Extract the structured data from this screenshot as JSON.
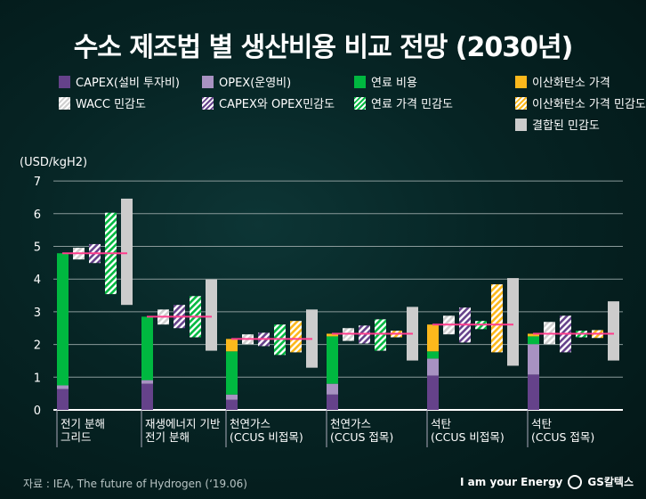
{
  "colors": {
    "capex": "#65428a",
    "opex": "#a892c2",
    "fuel": "#00b840",
    "carbon": "#fcb81c",
    "wacc": "#d9d9d9",
    "combined": "#cccccc",
    "mean": "#ff3d8c"
  },
  "chart_data": {
    "type": "bar",
    "title": "수소 제조법 별 생산비용 비교 전망 (2030년)",
    "ylabel": "(USD/kgH2)",
    "ylim": [
      0,
      7
    ],
    "yticks": [
      0,
      1,
      2,
      3,
      4,
      5,
      6,
      7
    ],
    "grid": true,
    "legend_placement": "top",
    "legend": [
      {
        "key": "capex",
        "label": "CAPEX(설비 투자비)",
        "hatch": false
      },
      {
        "key": "opex",
        "label": "OPEX(운영비)",
        "hatch": false
      },
      {
        "key": "fuel",
        "label": "연료 비용",
        "hatch": false
      },
      {
        "key": "carbon",
        "label": "이산화탄소 가격",
        "hatch": false
      },
      {
        "key": "wacc",
        "label": "WACC 민감도",
        "hatch": true
      },
      {
        "key": "capex",
        "label": "CAPEX와 OPEX민감도",
        "hatch": true
      },
      {
        "key": "fuel",
        "label": "연료 가격 민감도",
        "hatch": true
      },
      {
        "key": "carbon",
        "label": "이산화탄소 가격 민감도",
        "hatch": true
      },
      {
        "key": "combined",
        "label": "결합된 민감도",
        "hatch": false
      }
    ],
    "categories": [
      "전기 분해\n그리드",
      "재생에너지 기반\n전기 분해",
      "천연가스\n(CCUS 비접목)",
      "천연가스\n(CCUS 접목)",
      "석탄\n(CCUS 비접목)",
      "석탄\n(CCUS 접목)"
    ],
    "groups": [
      {
        "capex": 0.64,
        "opex": 0.11,
        "fuel": 4.04,
        "carbon": 0,
        "total": 4.79,
        "ranges": {
          "wacc": [
            4.6,
            4.96
          ],
          "capex_opex": [
            4.49,
            5.07
          ],
          "fuel": [
            3.54,
            6.03
          ],
          "combined": [
            3.21,
            6.46
          ]
        }
      },
      {
        "capex": 0.8,
        "opex": 0.11,
        "fuel": 1.94,
        "carbon": 0,
        "total": 2.85,
        "ranges": {
          "wacc": [
            2.61,
            3.07
          ],
          "capex_opex": [
            2.5,
            3.21
          ],
          "fuel": [
            2.22,
            3.48
          ],
          "combined": [
            1.81,
            3.99
          ]
        }
      },
      {
        "capex": 0.31,
        "opex": 0.16,
        "fuel": 1.32,
        "carbon": 0.38,
        "total": 2.17,
        "ranges": {
          "wacc": [
            2.01,
            2.31
          ],
          "capex_opex": [
            1.95,
            2.36
          ],
          "fuel": [
            1.68,
            2.61
          ],
          "carbon": [
            1.76,
            2.72
          ],
          "combined": [
            1.29,
            3.07
          ]
        }
      },
      {
        "capex": 0.47,
        "opex": 0.33,
        "fuel": 1.45,
        "carbon": 0.08,
        "total": 2.33,
        "ranges": {
          "wacc": [
            2.11,
            2.5
          ],
          "capex_opex": [
            2.03,
            2.58
          ],
          "fuel": [
            1.81,
            2.77
          ],
          "carbon": [
            2.22,
            2.42
          ],
          "combined": [
            1.51,
            3.15
          ]
        }
      },
      {
        "capex": 1.05,
        "opex": 0.52,
        "fuel": 0.22,
        "carbon": 0.82,
        "total": 2.61,
        "ranges": {
          "wacc": [
            2.31,
            2.88
          ],
          "capex_opex": [
            2.06,
            3.13
          ],
          "fuel": [
            2.47,
            2.72
          ],
          "carbon": [
            1.76,
            3.84
          ],
          "combined": [
            1.35,
            4.03
          ]
        }
      },
      {
        "capex": 1.08,
        "opex": 0.93,
        "fuel": 0.24,
        "carbon": 0.08,
        "total": 2.33,
        "ranges": {
          "wacc": [
            2.01,
            2.69
          ],
          "capex_opex": [
            1.76,
            2.88
          ],
          "fuel": [
            2.22,
            2.42
          ],
          "carbon": [
            2.2,
            2.44
          ],
          "combined": [
            1.51,
            3.32
          ]
        }
      }
    ]
  },
  "footer": {
    "source": "자료 : IEA, The future of Hydrogen (‘19.06)",
    "slogan": "I am your Energy",
    "logo": "GS칼텍스"
  }
}
